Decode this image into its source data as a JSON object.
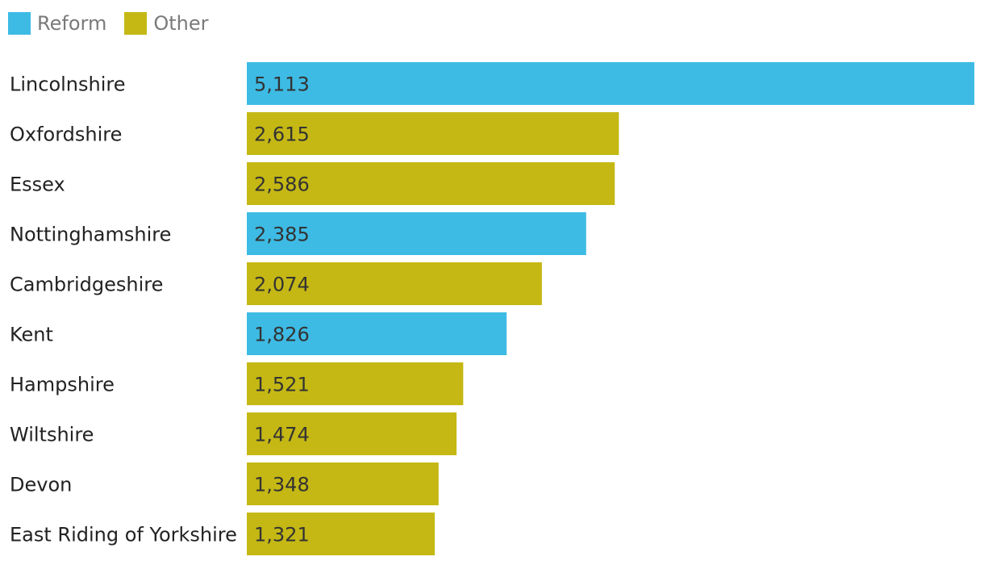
{
  "legend": {
    "items": [
      {
        "label": "Reform",
        "color": "#3dbbe4"
      },
      {
        "label": "Other",
        "color": "#c5b814"
      }
    ]
  },
  "chart_data": {
    "type": "bar",
    "orientation": "horizontal",
    "title": "",
    "xlabel": "",
    "ylabel": "",
    "xlim": [
      0,
      5113
    ],
    "grid": false,
    "legend_position": "top-left",
    "categories": [
      "Lincolnshire",
      "Oxfordshire",
      "Essex",
      "Nottinghamshire",
      "Cambridgeshire",
      "Kent",
      "Hampshire",
      "Wiltshire",
      "Devon",
      "East Riding of Yorkshire"
    ],
    "values": [
      5113,
      2615,
      2586,
      2385,
      2074,
      1826,
      1521,
      1474,
      1348,
      1321
    ],
    "value_labels": [
      "5,113",
      "2,615",
      "2,586",
      "2,385",
      "2,074",
      "1,826",
      "1,521",
      "1,474",
      "1,348",
      "1,321"
    ],
    "groups": [
      "Reform",
      "Other",
      "Other",
      "Reform",
      "Other",
      "Reform",
      "Other",
      "Other",
      "Other",
      "Other"
    ]
  }
}
